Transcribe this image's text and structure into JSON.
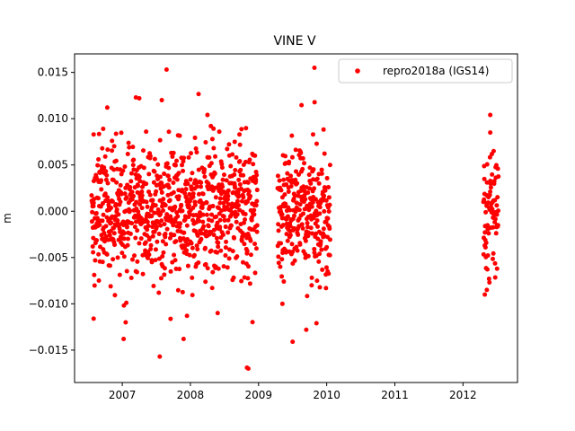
{
  "chart_data": {
    "type": "scatter",
    "title": "VINE V",
    "xlabel": "",
    "ylabel": "m",
    "xlim": [
      2006.3,
      2012.8
    ],
    "ylim": [
      -0.0185,
      0.017
    ],
    "xticks": [
      2007,
      2008,
      2009,
      2010,
      2011,
      2012
    ],
    "xtick_labels": [
      "2007",
      "2008",
      "2009",
      "2010",
      "2011",
      "2012"
    ],
    "yticks": [
      -0.015,
      -0.01,
      -0.005,
      0.0,
      0.005,
      0.01,
      0.015
    ],
    "ytick_labels": [
      "−0.015",
      "−0.010",
      "−0.005",
      "0.000",
      "0.005",
      "0.010",
      "0.015"
    ],
    "grid": false,
    "legend_position": "top-right",
    "series": [
      {
        "name": "repro2018a (IGS14)",
        "color": "#ff0000",
        "segments": [
          {
            "start": 2006.55,
            "end": 2008.98,
            "std": 0.0048
          },
          {
            "start": 2009.28,
            "end": 2010.05,
            "std": 0.0047
          },
          {
            "start": 2012.3,
            "end": 2012.52,
            "std": 0.004
          }
        ],
        "points": [
          [
            2006.58,
            -0.0116
          ],
          [
            2006.58,
            0.0083
          ],
          [
            2006.65,
            0.0056
          ],
          [
            2006.72,
            0.0089
          ],
          [
            2006.78,
            0.0112
          ],
          [
            2006.85,
            0.0076
          ],
          [
            2007.02,
            -0.0138
          ],
          [
            2007.05,
            -0.012
          ],
          [
            2007.2,
            0.0123
          ],
          [
            2007.25,
            0.0122
          ],
          [
            2007.35,
            0.0086
          ],
          [
            2007.55,
            -0.0157
          ],
          [
            2007.58,
            0.012
          ],
          [
            2007.65,
            0.0153
          ],
          [
            2007.72,
            0.0063
          ],
          [
            2007.9,
            -0.0138
          ],
          [
            2007.95,
            -0.0113
          ],
          [
            2008.25,
            0.0104
          ],
          [
            2008.3,
            0.0092
          ],
          [
            2008.4,
            -0.011
          ],
          [
            2008.65,
            0.0075
          ],
          [
            2008.72,
            0.0083
          ],
          [
            2008.83,
            -0.0169
          ],
          [
            2008.85,
            -0.017
          ],
          [
            2008.98,
            0.0023
          ],
          [
            2009.35,
            -0.01
          ],
          [
            2009.4,
            0.0052
          ],
          [
            2009.5,
            -0.0141
          ],
          [
            2009.55,
            0.0043
          ],
          [
            2009.62,
            0.0063
          ],
          [
            2009.7,
            -0.0128
          ],
          [
            2009.8,
            0.0083
          ],
          [
            2009.82,
            0.0155
          ],
          [
            2009.85,
            -0.0121
          ],
          [
            2010.05,
            0.005
          ],
          [
            2012.32,
            -0.009
          ],
          [
            2012.35,
            -0.0085
          ],
          [
            2012.4,
            0.0104
          ],
          [
            2012.4,
            0.0085
          ],
          [
            2012.45,
            0.0065
          ],
          [
            2012.5,
            -0.0062
          ]
        ]
      }
    ]
  }
}
